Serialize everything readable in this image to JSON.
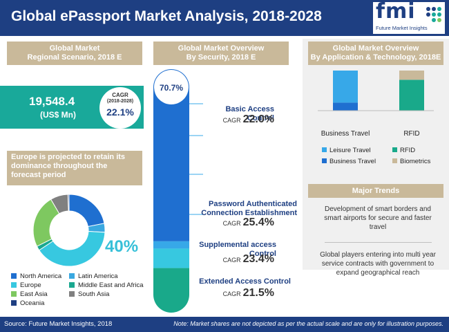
{
  "header": {
    "title": "Global ePassport Market Analysis, 2018-2028"
  },
  "logo": {
    "text": "fmi",
    "subtitle": "Future Market Insights"
  },
  "regional": {
    "header_line1": "Global Market",
    "header_line2": "Regional Scenario, 2018 E",
    "value": "19,548.4",
    "unit": "(US$ Mn)",
    "cagr_label": "CAGR",
    "cagr_range": "(2018-2028)",
    "cagr_value": "22.1%",
    "europe_note": "Europe is projected to retain its dominance throughout the forecast period",
    "highlight_pct": "40%"
  },
  "security": {
    "header_line1": "Global Market Overview",
    "header_line2": "By Security, 2018 E",
    "top_pct": "70.7%",
    "segments": [
      {
        "name": "Basic Access Control",
        "cagr_label": "CAGR",
        "cagr": "22.0%"
      },
      {
        "name": "Password Authenticated Connection Establishment",
        "cagr_label": "CAGR",
        "cagr": "25.4%"
      },
      {
        "name": "Supplemental access Control",
        "cagr_label": "CAGR",
        "cagr": "23.4%"
      },
      {
        "name": "Extended Access Control",
        "cagr_label": "CAGR",
        "cagr": "21.5%"
      }
    ]
  },
  "application": {
    "header_line1": "Global Market Overview",
    "header_line2": "By Application & Technology, 2018E"
  },
  "trends": {
    "header": "Major Trends",
    "items": [
      "Development of smart borders and smart airports for secure and faster travel",
      "Global players entering into multi year service contracts with government to expand geographical reach"
    ]
  },
  "footer": {
    "source": "Source: Future Market Insights, 2018",
    "note": "Note: Market shares are not depicted as per the actual scale and are only for illustration purposes."
  },
  "colors": {
    "navy": "#1e3f82",
    "teal": "#19a99a",
    "tan": "#c9b99a",
    "north_america": "#1f6fd0",
    "latin_america": "#3aa8e0",
    "europe": "#37c8e0",
    "middle_east_africa": "#1aa890",
    "east_asia": "#7ec860",
    "south_asia": "#808080",
    "oceania": "#1e3f82"
  },
  "chart_data": [
    {
      "type": "pie",
      "title": "",
      "categories": [
        "North America",
        "Latin America",
        "Europe",
        "Middle East and Africa",
        "East Asia",
        "South Asia",
        "Oceania"
      ],
      "values": [
        22,
        4,
        40,
        2,
        24,
        8,
        0.5
      ],
      "legend": "bottom"
    },
    {
      "type": "bar",
      "title": "",
      "stacked": true,
      "categories": [
        "Business Travel",
        "RFID"
      ],
      "series": [
        {
          "name": "Business Travel",
          "values": [
            20,
            0
          ]
        },
        {
          "name": "Leisure Travel",
          "values": [
            80,
            0
          ]
        },
        {
          "name": "RFID",
          "values": [
            0,
            77
          ]
        },
        {
          "name": "Biometrics",
          "values": [
            0,
            23
          ]
        }
      ],
      "legend_labels": [
        "Leisure Travel",
        "RFID",
        "Business Travel",
        "Biometrics"
      ],
      "legend": "bottom",
      "ylim": [
        0,
        100
      ]
    },
    {
      "type": "bar",
      "title": "",
      "stacked": true,
      "orientation": "vertical-capsule",
      "categories": [
        "Basic Access Control",
        "Password Authenticated Connection Establishment",
        "Supplemental access Control",
        "Extended Access Control"
      ],
      "values": [
        70.7,
        3,
        8,
        18.3
      ]
    }
  ]
}
